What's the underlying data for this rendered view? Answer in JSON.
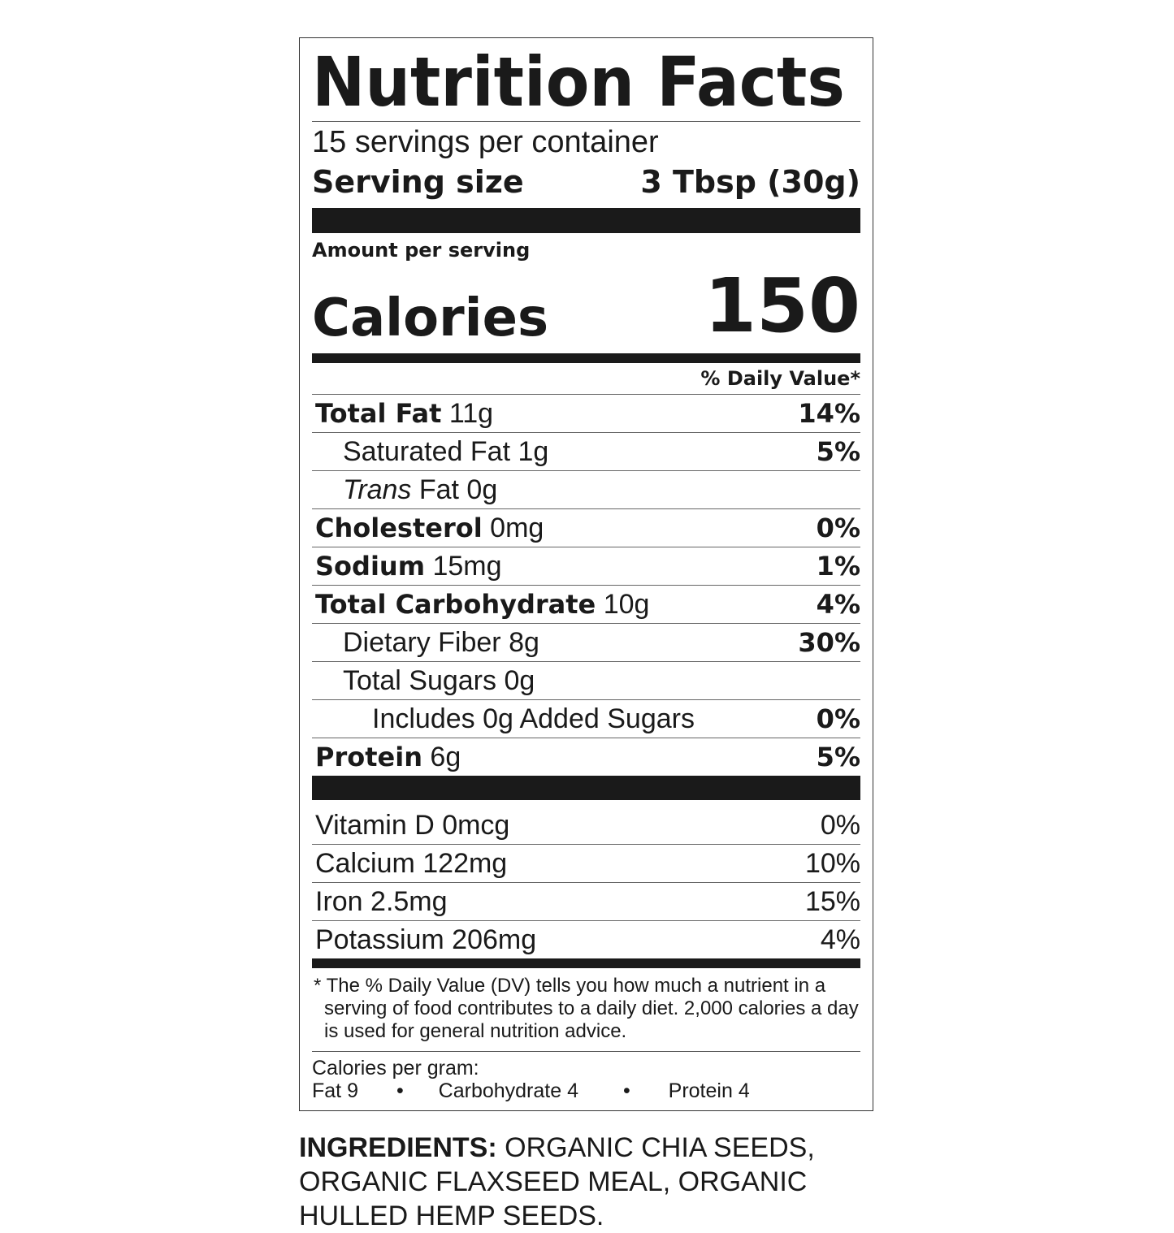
{
  "title": "Nutrition Facts",
  "servings": "15 servings per container",
  "serving_size_label": "Serving size",
  "serving_size_value": "3 Tbsp (30g)",
  "amount_per_serving": "Amount per serving",
  "calories_label": "Calories",
  "calories_value": "150",
  "dv_header": "% Daily Value*",
  "nutrients": [
    {
      "name": "Total Fat",
      "amount": "11g",
      "dv": "14%",
      "bold": true,
      "indent": 0
    },
    {
      "name": "Saturated Fat",
      "amount": "1g",
      "dv": "5%",
      "bold": false,
      "indent": 1
    },
    {
      "name": "Trans",
      "name_suffix": " Fat",
      "amount": "0g",
      "dv": "",
      "bold": false,
      "indent": 1,
      "italic": true
    },
    {
      "name": "Cholesterol",
      "amount": "0mg",
      "dv": "0%",
      "bold": true,
      "indent": 0
    },
    {
      "name": "Sodium",
      "amount": "15mg",
      "dv": "1%",
      "bold": true,
      "indent": 0
    },
    {
      "name": "Total Carbohydrate",
      "amount": "10g",
      "dv": "4%",
      "bold": true,
      "indent": 0
    },
    {
      "name": "Dietary Fiber",
      "amount": "8g",
      "dv": "30%",
      "bold": false,
      "indent": 1
    },
    {
      "name": "Total Sugars",
      "amount": "0g",
      "dv": "",
      "bold": false,
      "indent": 1
    },
    {
      "name": "Includes 0g Added Sugars",
      "amount": "",
      "dv": "0%",
      "bold": false,
      "indent": 2
    },
    {
      "name": "Protein",
      "amount": "6g",
      "dv": "5%",
      "bold": true,
      "indent": 0
    }
  ],
  "vitamins": [
    {
      "name": "Vitamin D 0mcg",
      "dv": "0%"
    },
    {
      "name": "Calcium 122mg",
      "dv": "10%"
    },
    {
      "name": "Iron 2.5mg",
      "dv": "15%"
    },
    {
      "name": "Potassium 206mg",
      "dv": "4%"
    }
  ],
  "footnote": "* The % Daily Value (DV) tells you how much a nutrient in a serving of food contributes to a daily diet. 2,000 calories a day is used for general nutrition advice.",
  "calories_per_gram": {
    "label": "Calories per gram:",
    "fat": "Fat 9",
    "carb": "Carbohydrate 4",
    "protein": "Protein 4",
    "bullet": "•"
  },
  "ingredients": {
    "label": "INGREDIENTS:",
    "text": " ORGANIC CHIA SEEDS, ORGANIC FLAXSEED MEAL, ORGANIC HULLED HEMP SEEDS."
  }
}
